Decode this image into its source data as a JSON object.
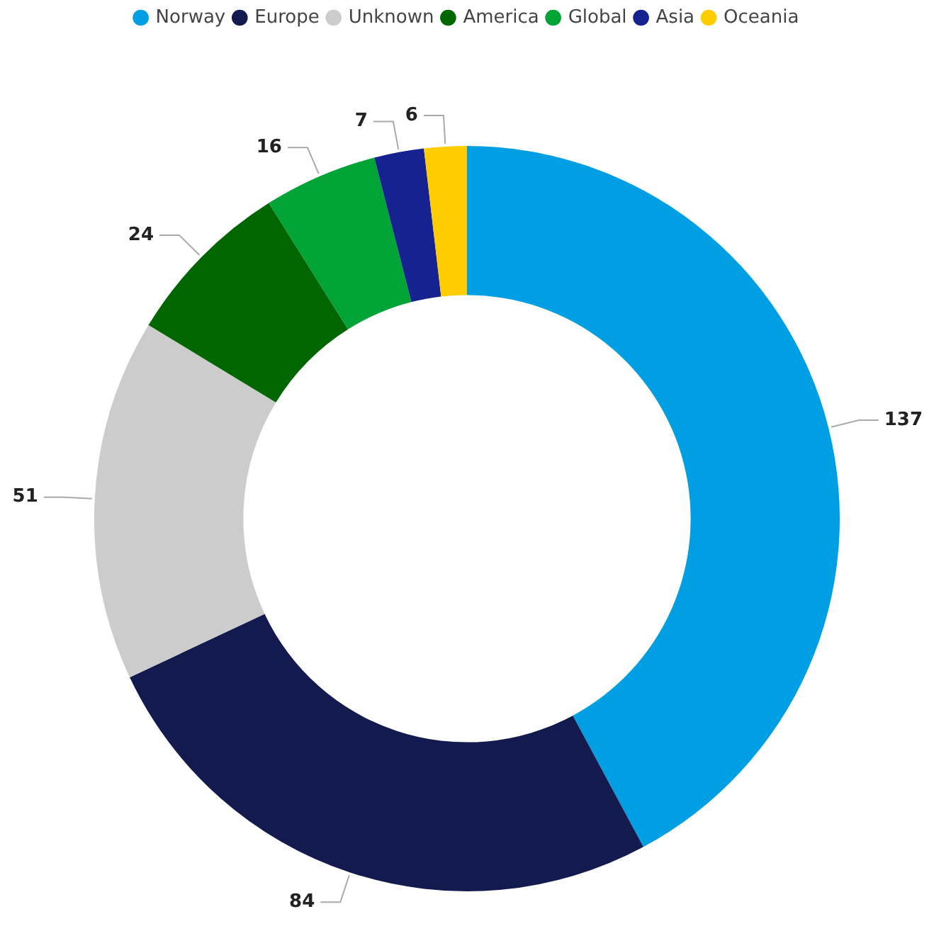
{
  "chart_data": {
    "type": "donut",
    "categories": [
      "Norway",
      "Europe",
      "Unknown",
      "America",
      "Global",
      "Asia",
      "Oceania"
    ],
    "values": [
      137,
      84,
      51,
      24,
      16,
      7,
      6
    ],
    "colors": [
      "#009fe3",
      "#131b4e",
      "#cccccc",
      "#006600",
      "#00a335",
      "#16228f",
      "#ffcc00"
    ],
    "data_labels": true,
    "legend": "top"
  }
}
